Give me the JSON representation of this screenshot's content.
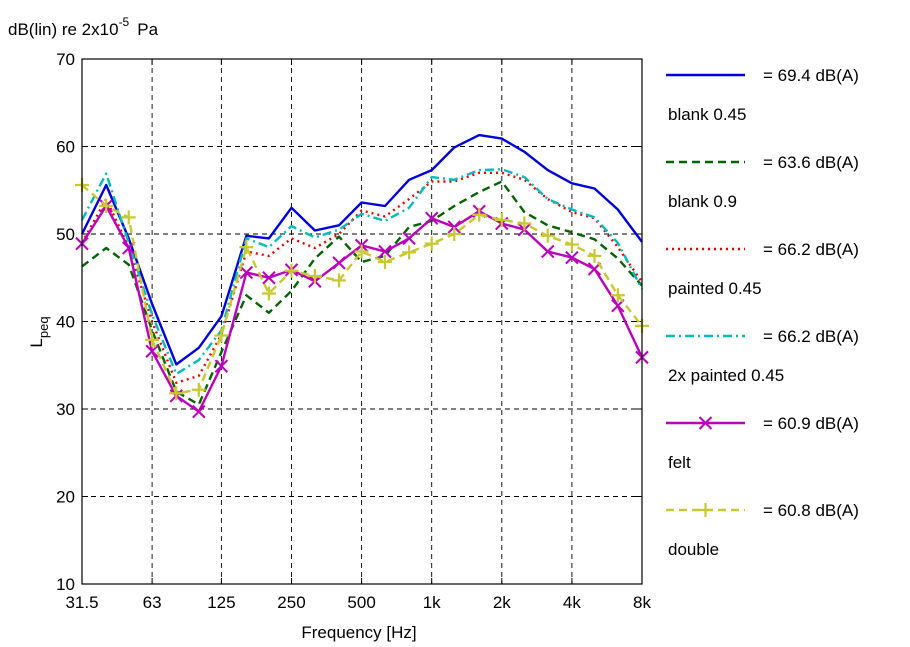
{
  "chart_data": {
    "type": "line",
    "top_label": "dB(lin) re 2x10",
    "top_label_exp": "-5",
    "top_label_unit": "Pa",
    "ylabel": "L",
    "ylabel_sub": "peq",
    "xlabel": "Frequency [Hz]",
    "xscale": "log",
    "grid": true,
    "legend_placement": "right",
    "ylim": [
      10,
      70
    ],
    "yticks": [
      10,
      20,
      30,
      40,
      50,
      60,
      70
    ],
    "xticks": [
      {
        "value": 31.5,
        "label": "31.5"
      },
      {
        "value": 63,
        "label": "63"
      },
      {
        "value": 125,
        "label": "125"
      },
      {
        "value": 250,
        "label": "250"
      },
      {
        "value": 500,
        "label": "500"
      },
      {
        "value": 1000,
        "label": "1k"
      },
      {
        "value": 2000,
        "label": "2k"
      },
      {
        "value": 4000,
        "label": "4k"
      },
      {
        "value": 8000,
        "label": "8k"
      }
    ],
    "x": [
      31.5,
      40,
      50,
      63,
      80,
      100,
      125,
      160,
      200,
      250,
      315,
      400,
      500,
      630,
      800,
      1000,
      1250,
      1600,
      2000,
      2500,
      3150,
      4000,
      5000,
      6300,
      8000
    ],
    "series": [
      {
        "name": "blank 0.45",
        "legend_value": "= 69.4 dB(A)",
        "color": "#0000dd",
        "dash": "",
        "marker": "",
        "values": [
          50.0,
          55.6,
          49.5,
          42.0,
          35.1,
          37.0,
          40.6,
          49.8,
          49.5,
          53.0,
          50.4,
          51.0,
          53.6,
          53.2,
          56.2,
          57.3,
          59.9,
          61.3,
          60.9,
          59.4,
          57.3,
          55.8,
          55.2,
          52.8,
          49.1
        ]
      },
      {
        "name": "blank 0.9",
        "legend_value": "= 63.6 dB(A)",
        "color": "#006400",
        "dash": "8,5",
        "marker": "",
        "values": [
          46.3,
          48.4,
          46.5,
          39.0,
          32.0,
          30.5,
          36.5,
          43.0,
          41.0,
          43.5,
          47.2,
          49.7,
          46.8,
          47.5,
          50.8,
          51.5,
          53.2,
          54.8,
          56.0,
          52.5,
          51.0,
          50.2,
          49.4,
          47.2,
          44.1
        ]
      },
      {
        "name": "painted 0.45",
        "legend_value": "= 66.2 dB(A)",
        "color": "#ee0000",
        "dash": "2,4",
        "marker": "",
        "values": [
          49.0,
          54.0,
          48.5,
          40.0,
          33.0,
          33.8,
          38.5,
          48.0,
          47.5,
          49.5,
          48.4,
          50.0,
          52.7,
          52.0,
          54.0,
          56.0,
          56.0,
          57.0,
          57.0,
          56.2,
          54.0,
          52.5,
          51.8,
          48.5,
          44.5
        ]
      },
      {
        "name": "2x painted 0.45",
        "legend_value": "= 66.2 dB(A)",
        "color": "#00bbbb",
        "dash": "9,4,2,4",
        "marker": "",
        "values": [
          51.6,
          56.9,
          49.0,
          40.8,
          34.0,
          35.6,
          39.0,
          49.5,
          48.5,
          50.9,
          49.6,
          50.5,
          52.3,
          51.5,
          53.0,
          56.5,
          56.2,
          57.3,
          57.4,
          56.5,
          54.0,
          52.8,
          51.9,
          49.0,
          43.7
        ]
      },
      {
        "name": "felt",
        "legend_value": "= 60.9 dB(A)",
        "color": "#bb00bb",
        "dash": "",
        "marker": "x",
        "values": [
          48.9,
          53.2,
          48.4,
          36.6,
          31.5,
          29.7,
          34.9,
          45.6,
          45.0,
          45.9,
          44.6,
          46.7,
          48.7,
          48.0,
          49.5,
          51.8,
          50.8,
          52.6,
          51.2,
          50.5,
          48.0,
          47.3,
          46.0,
          41.8,
          35.9
        ]
      },
      {
        "name": "double",
        "legend_value": "= 60.8 dB(A)",
        "color": "#c8c830",
        "dash": "8,5",
        "marker": "+",
        "values": [
          55.6,
          53.2,
          51.9,
          37.9,
          31.8,
          32.2,
          38.4,
          48.5,
          43.2,
          45.8,
          45.2,
          44.7,
          48.0,
          46.8,
          47.9,
          48.9,
          50.0,
          52.2,
          51.6,
          51.2,
          49.8,
          48.8,
          47.5,
          43.0,
          39.5
        ]
      }
    ]
  }
}
